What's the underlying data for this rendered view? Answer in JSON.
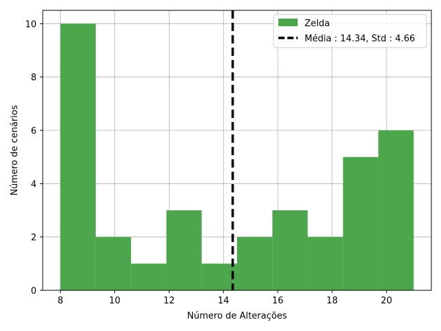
{
  "chart_data": {
    "type": "bar",
    "subtype": "histogram",
    "bins": [
      {
        "start": 8.0,
        "end": 9.3,
        "count": 10
      },
      {
        "start": 9.3,
        "end": 10.6,
        "count": 2
      },
      {
        "start": 10.6,
        "end": 11.9,
        "count": 1
      },
      {
        "start": 11.9,
        "end": 13.2,
        "count": 3
      },
      {
        "start": 13.2,
        "end": 14.5,
        "count": 1
      },
      {
        "start": 14.5,
        "end": 15.8,
        "count": 2
      },
      {
        "start": 15.8,
        "end": 17.1,
        "count": 3
      },
      {
        "start": 17.1,
        "end": 18.4,
        "count": 2
      },
      {
        "start": 18.4,
        "end": 19.7,
        "count": 5
      },
      {
        "start": 19.7,
        "end": 21.0,
        "count": 6
      }
    ],
    "mean": 14.34,
    "std": 4.66,
    "xlabel": "Número de Alterações",
    "ylabel": "Número de cenários",
    "xlim": [
      7.35,
      21.65
    ],
    "ylim": [
      0,
      10.5
    ],
    "xticks": [
      8,
      10,
      12,
      14,
      16,
      18,
      20
    ],
    "yticks": [
      0,
      2,
      4,
      6,
      8,
      10
    ],
    "grid": true,
    "legend_position": "top-right",
    "series": [
      {
        "name": "Zelda",
        "color": "#4ca64c",
        "kind": "bars"
      },
      {
        "name": "Média : 14.34, Std : 4.66",
        "color": "#000000",
        "kind": "dashed-line"
      }
    ]
  }
}
